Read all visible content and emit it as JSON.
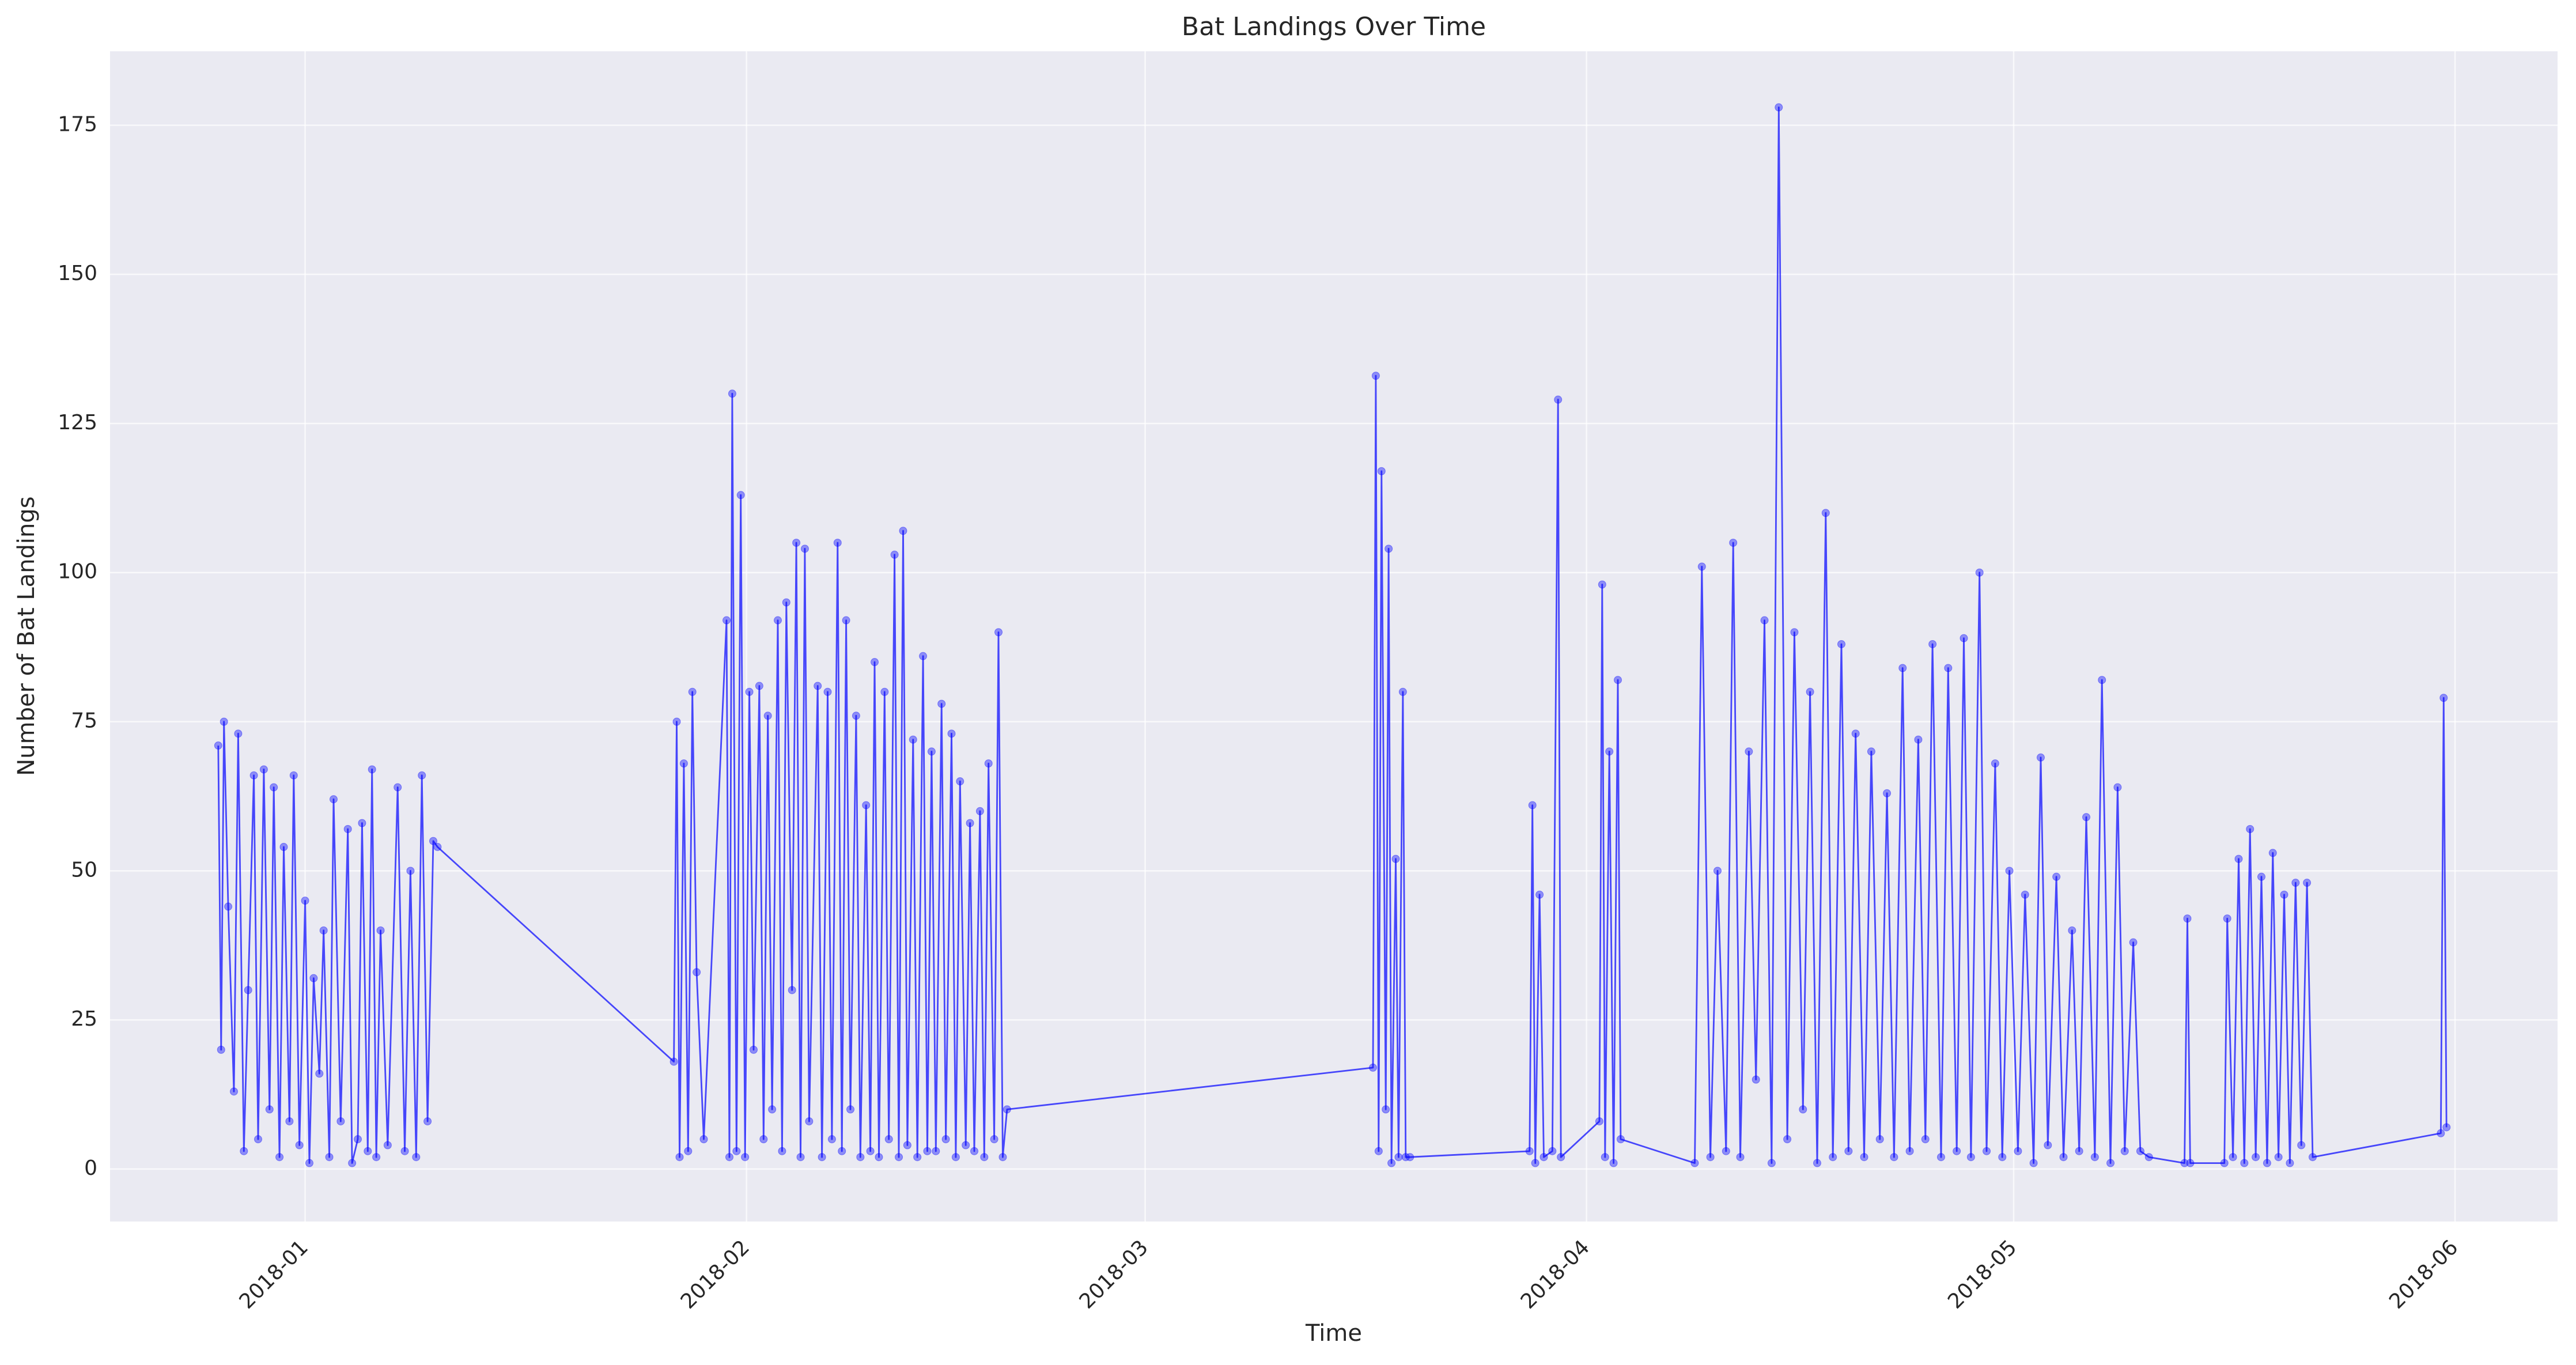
{
  "chart_data": {
    "type": "line",
    "title": "Bat Landings Over Time",
    "x_label": "Time",
    "y_label": "Number of Bat Landings",
    "x": [
      -6.1,
      -5.9,
      -5.7,
      -5.4,
      -5.0,
      -4.7,
      -4.3,
      -4.0,
      -3.6,
      -3.3,
      -2.9,
      -2.5,
      -2.2,
      -1.8,
      -1.5,
      -1.1,
      -0.8,
      -0.4,
      0,
      0.3,
      0.6,
      1.0,
      1.3,
      1.7,
      2.0,
      2.5,
      3.0,
      3.3,
      3.7,
      4.0,
      4.4,
      4.7,
      5.0,
      5.3,
      5.8,
      6.5,
      7.0,
      7.4,
      7.8,
      8.2,
      8.6,
      9.0,
      9.3,
      25.9,
      26.1,
      26.3,
      26.6,
      26.9,
      27.2,
      27.5,
      28.0,
      29.6,
      29.8,
      30.0,
      30.3,
      30.6,
      30.9,
      31.2,
      31.5,
      31.9,
      32.2,
      32.5,
      32.8,
      33.2,
      33.5,
      33.8,
      34.2,
      34.5,
      34.8,
      35.1,
      35.4,
      36.0,
      36.3,
      36.7,
      37.0,
      37.4,
      37.7,
      38.0,
      38.3,
      38.7,
      39.0,
      39.4,
      39.7,
      40.0,
      40.3,
      40.7,
      41.0,
      41.4,
      41.7,
      42.0,
      42.3,
      42.7,
      43.0,
      43.4,
      43.7,
      44.0,
      44.3,
      44.7,
      45.0,
      45.4,
      45.7,
      46.0,
      46.4,
      46.7,
      47.0,
      47.4,
      47.7,
      48.0,
      48.4,
      48.7,
      49.0,
      49.3,
      75.0,
      75.2,
      75.4,
      75.6,
      75.9,
      76.1,
      76.3,
      76.6,
      76.8,
      77.1,
      77.3,
      77.6,
      86.0,
      86.2,
      86.4,
      86.7,
      87.0,
      87.6,
      88.0,
      88.2,
      90.9,
      91.1,
      91.3,
      91.6,
      91.9,
      92.2,
      92.4,
      97.6,
      98.1,
      98.7,
      99.2,
      99.8,
      100.3,
      100.8,
      101.4,
      101.9,
      102.5,
      103.0,
      103.5,
      104.1,
      104.6,
      105.2,
      105.7,
      106.2,
      106.8,
      107.3,
      107.9,
      108.4,
      108.9,
      109.5,
      110.0,
      110.6,
      111.1,
      111.6,
      112.2,
      112.7,
      113.3,
      113.8,
      114.3,
      114.9,
      115.4,
      116.0,
      116.5,
      117.0,
      117.6,
      118.1,
      118.7,
      119.2,
      119.7,
      120.3,
      120.8,
      121.4,
      121.9,
      122.4,
      123.0,
      123.5,
      124.1,
      124.6,
      125.1,
      125.7,
      126.2,
      126.8,
      127.3,
      127.8,
      128.4,
      128.9,
      129.5,
      132.0,
      132.2,
      132.4,
      134.8,
      135.0,
      135.4,
      135.8,
      136.2,
      136.6,
      137.0,
      137.4,
      137.8,
      138.2,
      138.6,
      139.0,
      139.4,
      139.8,
      140.2,
      140.6,
      141.0,
      150.0,
      150.2,
      150.4
    ],
    "values": [
      71,
      20,
      75,
      44,
      13,
      73,
      3,
      30,
      66,
      5,
      67,
      10,
      64,
      2,
      54,
      8,
      66,
      4,
      45,
      1,
      32,
      16,
      40,
      2,
      62,
      8,
      57,
      1,
      5,
      58,
      3,
      67,
      2,
      40,
      4,
      64,
      3,
      50,
      2,
      66,
      8,
      55,
      54,
      18,
      75,
      2,
      68,
      3,
      80,
      33,
      5,
      92,
      2,
      130,
      3,
      113,
      2,
      80,
      20,
      81,
      5,
      76,
      10,
      92,
      3,
      95,
      30,
      105,
      2,
      104,
      8,
      81,
      2,
      80,
      5,
      105,
      3,
      92,
      10,
      76,
      2,
      61,
      3,
      85,
      2,
      80,
      5,
      103,
      2,
      107,
      4,
      72,
      2,
      86,
      3,
      70,
      3,
      78,
      5,
      73,
      2,
      65,
      4,
      58,
      3,
      60,
      2,
      68,
      5,
      90,
      2,
      10,
      17,
      133,
      3,
      117,
      10,
      104,
      1,
      52,
      2,
      80,
      2,
      2,
      3,
      61,
      1,
      46,
      2,
      3,
      129,
      2,
      8,
      98,
      2,
      70,
      1,
      82,
      5,
      1,
      101,
      2,
      50,
      3,
      105,
      2,
      70,
      15,
      92,
      1,
      178,
      5,
      90,
      10,
      80,
      1,
      110,
      2,
      88,
      3,
      73,
      2,
      70,
      5,
      63,
      2,
      84,
      3,
      72,
      5,
      88,
      2,
      84,
      3,
      89,
      2,
      100,
      3,
      68,
      2,
      50,
      3,
      46,
      1,
      69,
      4,
      49,
      2,
      40,
      3,
      59,
      2,
      82,
      1,
      64,
      3,
      38,
      3,
      2,
      1,
      42,
      1,
      1,
      42,
      2,
      52,
      1,
      57,
      2,
      49,
      1,
      53,
      2,
      46,
      1,
      48,
      4,
      48,
      2,
      6,
      79,
      7
    ],
    "color": "#0000ff",
    "xlim": [
      -13.7,
      158.2
    ],
    "xticks": [
      {
        "value": 0,
        "label": "2018-01"
      },
      {
        "value": 31,
        "label": "2018-02"
      },
      {
        "value": 59,
        "label": "2018-03"
      },
      {
        "value": 90,
        "label": "2018-04"
      },
      {
        "value": 120,
        "label": "2018-05"
      },
      {
        "value": 151,
        "label": "2018-06"
      }
    ],
    "ylim": [
      -8.8,
      187.4
    ],
    "yticks": [
      0,
      25,
      50,
      75,
      100,
      125,
      150,
      175
    ],
    "grid": true
  }
}
